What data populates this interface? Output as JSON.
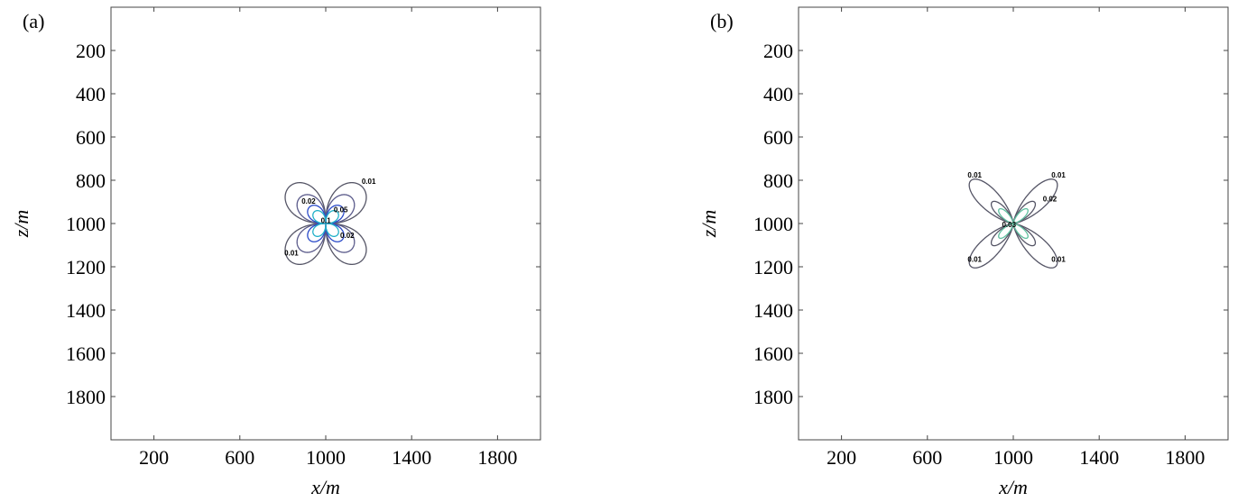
{
  "chart_data": [
    {
      "type": "contour",
      "panel_label": "(a)",
      "xlabel": "x/m",
      "ylabel": "z/m",
      "xlim": [
        0,
        2000
      ],
      "ylim": [
        0,
        2000
      ],
      "y_inverted": true,
      "xticks": [
        200,
        600,
        1000,
        1400,
        1800
      ],
      "yticks": [
        200,
        400,
        600,
        800,
        1000,
        1200,
        1400,
        1600,
        1800
      ],
      "levels": [
        0.01,
        0.02,
        0.05,
        0.1
      ],
      "colors": [
        "#555566",
        "#5a5a8a",
        "#2848c8",
        "#20b0c8"
      ],
      "contour_labels": [
        {
          "value": 0.01,
          "x": 1180,
          "y": 830
        },
        {
          "value": 0.02,
          "x": 900,
          "y": 920
        },
        {
          "value": 0.05,
          "x": 1050,
          "y": 960
        },
        {
          "value": 0.1,
          "x": 990,
          "y": 1010
        },
        {
          "value": 0.02,
          "x": 1080,
          "y": 1080
        },
        {
          "value": 0.01,
          "x": 820,
          "y": 1160
        }
      ]
    },
    {
      "type": "contour",
      "panel_label": "(b)",
      "xlabel": "x/m",
      "ylabel": "z/m",
      "xlim": [
        0,
        2000
      ],
      "ylim": [
        0,
        2000
      ],
      "y_inverted": true,
      "xticks": [
        200,
        600,
        1000,
        1400,
        1800
      ],
      "yticks": [
        200,
        400,
        600,
        800,
        1000,
        1200,
        1400,
        1600,
        1800
      ],
      "levels": [
        0.01,
        0.02,
        0.03
      ],
      "colors": [
        "#555566",
        "#555566",
        "#60c0a0"
      ],
      "contour_labels": [
        {
          "value": 0.01,
          "x": 800,
          "y": 800
        },
        {
          "value": 0.01,
          "x": 1190,
          "y": 800
        },
        {
          "value": 0.02,
          "x": 1150,
          "y": 910
        },
        {
          "value": 0.03,
          "x": 960,
          "y": 1030
        },
        {
          "value": 0.01,
          "x": 800,
          "y": 1190
        },
        {
          "value": 0.01,
          "x": 1190,
          "y": 1190
        }
      ]
    }
  ]
}
